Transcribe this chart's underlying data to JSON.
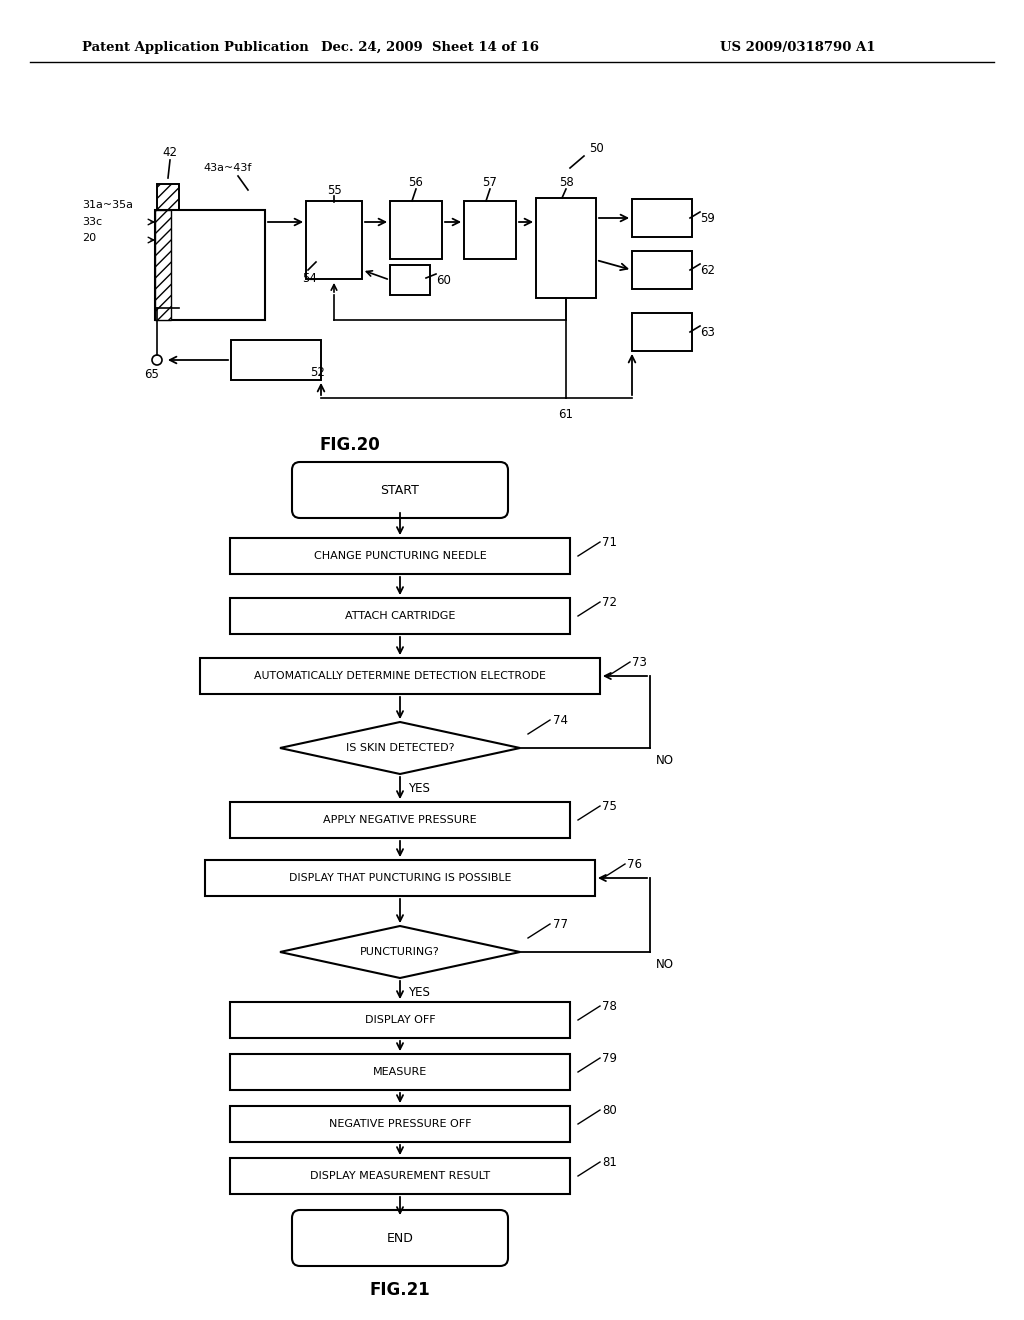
{
  "bg_color": "#ffffff",
  "header_left": "Patent Application Publication",
  "header_mid": "Dec. 24, 2009  Sheet 14 of 16",
  "header_right": "US 2009/0318790 A1",
  "fig20_label": "FIG.20",
  "fig21_label": "FIG.21",
  "fig20": {
    "label_50": "50",
    "label_42": "42",
    "label_43": "43a~43f",
    "label_55": "55",
    "label_56": "56",
    "label_57": "57",
    "label_58": "58",
    "label_59": "59",
    "label_60": "60",
    "label_62": "62",
    "label_63": "63",
    "label_54": "54",
    "label_52": "52",
    "label_65": "65",
    "label_61": "61",
    "label_31": "31a~35a",
    "label_33": "33c",
    "label_20": "20"
  },
  "fig21": {
    "start": "START",
    "end": "END",
    "n71": "CHANGE PUNCTURING NEEDLE",
    "label71": "71",
    "n72": "ATTACH CARTRIDGE",
    "label72": "72",
    "n73": "AUTOMATICALLY DETERMINE DETECTION ELECTRODE",
    "label73": "73",
    "n74": "IS SKIN DETECTED?",
    "label74": "74",
    "n75": "APPLY NEGATIVE PRESSURE",
    "label75": "75",
    "n76": "DISPLAY THAT PUNCTURING IS POSSIBLE",
    "label76": "76",
    "n77": "PUNCTURING?",
    "label77": "77",
    "n78": "DISPLAY OFF",
    "label78": "78",
    "n79": "MEASURE",
    "label79": "79",
    "n80": "NEGATIVE PRESSURE OFF",
    "label80": "80",
    "n81": "DISPLAY MEASUREMENT RESULT",
    "label81": "81",
    "yes": "YES",
    "no": "NO"
  }
}
